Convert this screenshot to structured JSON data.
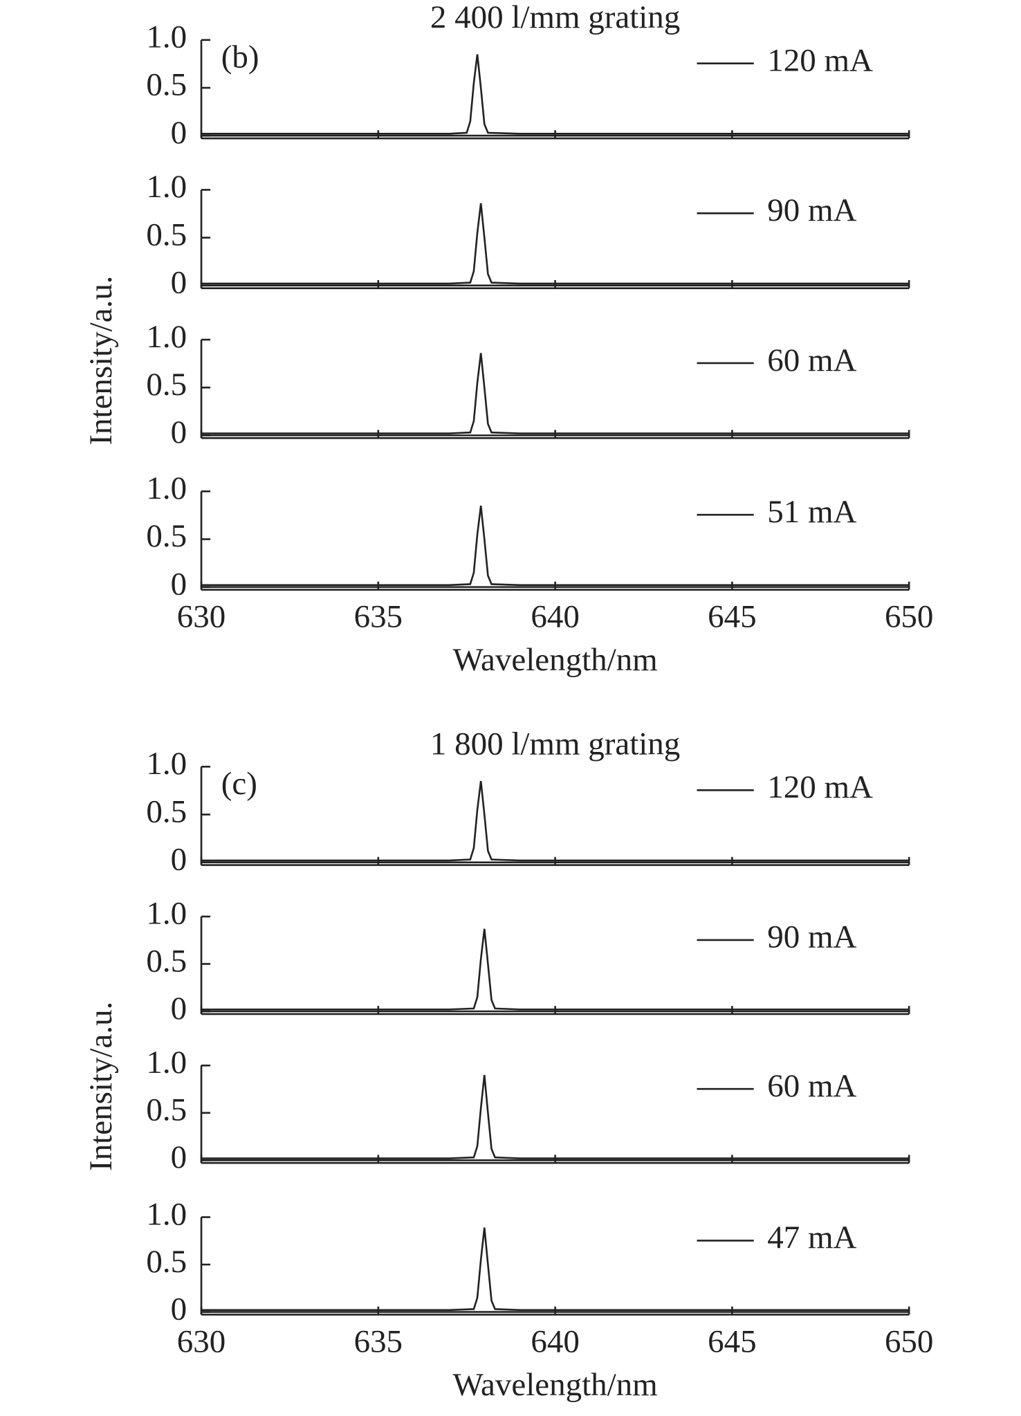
{
  "chart_data": [
    {
      "type": "line",
      "title": "2 400 l/mm grating",
      "panel_label": "(b)",
      "x": [
        630,
        632,
        634,
        636,
        637,
        637.5,
        637.6,
        637.7,
        637.8,
        637.9,
        638.0,
        638.1,
        639,
        641,
        643,
        645,
        647,
        650
      ],
      "series": [
        {
          "name": "120 mA",
          "color": "#222222",
          "values": [
            0.02,
            0.02,
            0.02,
            0.02,
            0.02,
            0.03,
            0.15,
            0.55,
            0.85,
            0.5,
            0.12,
            0.03,
            0.02,
            0.02,
            0.02,
            0.02,
            0.02,
            0.02
          ]
        }
      ],
      "xlim": [
        630,
        650
      ],
      "ylim": [
        0,
        1
      ],
      "yticks": [
        0,
        0.5,
        {
          "value": 1,
          "label": "1.0"
        }
      ]
    },
    {
      "type": "line",
      "ylabel": "Intensity/a.u.",
      "x": [
        630,
        632,
        634,
        636,
        637,
        637.6,
        637.7,
        637.8,
        637.9,
        638.0,
        638.1,
        638.2,
        639,
        641,
        643,
        645,
        647,
        650
      ],
      "series": [
        {
          "name": "90 mA",
          "color": "#222222",
          "values": [
            0.02,
            0.02,
            0.02,
            0.02,
            0.02,
            0.03,
            0.15,
            0.55,
            0.86,
            0.5,
            0.12,
            0.03,
            0.02,
            0.02,
            0.02,
            0.02,
            0.02,
            0.02
          ]
        }
      ],
      "xlim": [
        630,
        650
      ],
      "ylim": [
        0,
        1
      ],
      "yticks": [
        0,
        0.5,
        {
          "value": 1,
          "label": "1.0"
        }
      ]
    },
    {
      "type": "line",
      "x": [
        630,
        632,
        634,
        636,
        637,
        637.6,
        637.7,
        637.8,
        637.9,
        638.0,
        638.1,
        638.2,
        639,
        641,
        643,
        645,
        647,
        650
      ],
      "series": [
        {
          "name": "60 mA",
          "color": "#222222",
          "values": [
            0.02,
            0.02,
            0.02,
            0.02,
            0.02,
            0.03,
            0.15,
            0.55,
            0.86,
            0.5,
            0.12,
            0.03,
            0.02,
            0.02,
            0.02,
            0.02,
            0.02,
            0.02
          ]
        }
      ],
      "xlim": [
        630,
        650
      ],
      "ylim": [
        0,
        1
      ],
      "yticks": [
        0,
        0.5,
        {
          "value": 1,
          "label": "1.0"
        }
      ]
    },
    {
      "type": "line",
      "xlabel": "Wavelength/nm",
      "x": [
        630,
        632,
        634,
        636,
        637,
        637.6,
        637.7,
        637.8,
        637.9,
        638.0,
        638.1,
        638.2,
        639,
        641,
        643,
        645,
        647,
        650
      ],
      "series": [
        {
          "name": "51 mA",
          "color": "#222222",
          "values": [
            0.02,
            0.02,
            0.02,
            0.02,
            0.02,
            0.03,
            0.15,
            0.55,
            0.85,
            0.5,
            0.12,
            0.03,
            0.02,
            0.02,
            0.02,
            0.02,
            0.02,
            0.02
          ]
        }
      ],
      "xlim": [
        630,
        650
      ],
      "ylim": [
        0,
        1
      ],
      "yticks": [
        0,
        0.5,
        {
          "value": 1,
          "label": "1.0"
        }
      ],
      "xticks": [
        630,
        635,
        640,
        645,
        650
      ]
    },
    {
      "type": "line",
      "title": "1 800 l/mm grating",
      "panel_label": "(c)",
      "x": [
        630,
        632,
        634,
        636,
        637,
        637.6,
        637.7,
        637.8,
        637.9,
        638.0,
        638.1,
        638.2,
        639,
        641,
        643,
        645,
        647,
        650
      ],
      "series": [
        {
          "name": "120 mA",
          "color": "#222222",
          "values": [
            0.02,
            0.02,
            0.02,
            0.02,
            0.02,
            0.03,
            0.15,
            0.55,
            0.85,
            0.5,
            0.12,
            0.03,
            0.02,
            0.02,
            0.02,
            0.02,
            0.02,
            0.02
          ]
        }
      ],
      "xlim": [
        630,
        650
      ],
      "ylim": [
        0,
        1
      ],
      "yticks": [
        0,
        0.5,
        {
          "value": 1,
          "label": "1.0"
        }
      ]
    },
    {
      "type": "line",
      "ylabel": "Intensity/a.u.",
      "x": [
        630,
        632,
        634,
        636,
        637,
        637.7,
        637.8,
        637.9,
        638.0,
        638.1,
        638.2,
        638.3,
        639,
        641,
        643,
        645,
        647,
        650
      ],
      "series": [
        {
          "name": "90 mA",
          "color": "#222222",
          "values": [
            0.02,
            0.02,
            0.02,
            0.02,
            0.02,
            0.03,
            0.15,
            0.55,
            0.87,
            0.5,
            0.12,
            0.03,
            0.02,
            0.02,
            0.02,
            0.02,
            0.02,
            0.02
          ]
        }
      ],
      "xlim": [
        630,
        650
      ],
      "ylim": [
        0,
        1
      ],
      "yticks": [
        0,
        0.5,
        {
          "value": 1,
          "label": "1.0"
        }
      ]
    },
    {
      "type": "line",
      "x": [
        630,
        632,
        634,
        636,
        637,
        637.7,
        637.8,
        637.9,
        638.0,
        638.1,
        638.2,
        638.3,
        639,
        641,
        643,
        645,
        647,
        650
      ],
      "series": [
        {
          "name": "60 mA",
          "color": "#222222",
          "values": [
            0.02,
            0.02,
            0.02,
            0.02,
            0.02,
            0.03,
            0.15,
            0.55,
            0.9,
            0.5,
            0.12,
            0.03,
            0.02,
            0.02,
            0.02,
            0.02,
            0.02,
            0.02
          ]
        }
      ],
      "xlim": [
        630,
        650
      ],
      "ylim": [
        0,
        1
      ],
      "yticks": [
        0,
        0.5,
        {
          "value": 1,
          "label": "1.0"
        }
      ]
    },
    {
      "type": "line",
      "xlabel": "Wavelength/nm",
      "x": [
        630,
        632,
        634,
        636,
        637,
        637.7,
        637.8,
        637.9,
        638.0,
        638.1,
        638.2,
        638.3,
        639,
        641,
        643,
        645,
        647,
        650
      ],
      "series": [
        {
          "name": "47 mA",
          "color": "#222222",
          "values": [
            0.02,
            0.02,
            0.02,
            0.02,
            0.02,
            0.03,
            0.15,
            0.55,
            0.89,
            0.5,
            0.12,
            0.03,
            0.02,
            0.02,
            0.02,
            0.02,
            0.02,
            0.02
          ]
        }
      ],
      "xlim": [
        630,
        650
      ],
      "ylim": [
        0,
        1
      ],
      "yticks": [
        0,
        0.5,
        {
          "value": 1,
          "label": "1.0"
        }
      ],
      "xticks": [
        630,
        635,
        640,
        645,
        650
      ]
    }
  ]
}
